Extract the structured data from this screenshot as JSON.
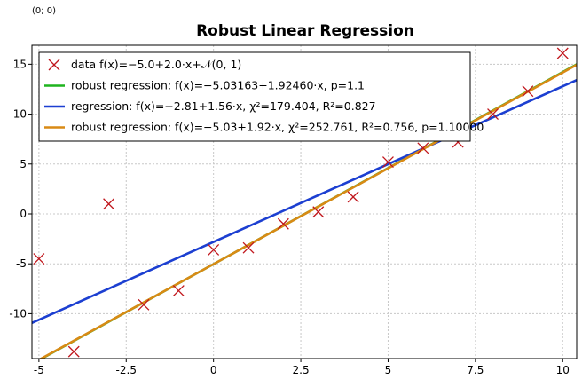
{
  "coord_readout": "(0; 0)",
  "chart_data": {
    "type": "scatter",
    "title": "Robust Linear Regression",
    "xlabel": "",
    "ylabel": "",
    "xlim": [
      -5.2,
      10.4
    ],
    "ylim": [
      -14.5,
      16.9
    ],
    "x_ticks": [
      -5,
      -2.5,
      0,
      2.5,
      5,
      7.5,
      10
    ],
    "x_tick_labels": [
      "-5",
      "-2.5",
      "0",
      "2.5",
      "5",
      "7.5",
      "10"
    ],
    "y_ticks": [
      -10,
      -5,
      0,
      5,
      10,
      15
    ],
    "y_tick_labels": [
      "-10",
      "-5",
      "0",
      "5",
      "10",
      "15"
    ],
    "grid": true,
    "legend_position": "top-left",
    "series": [
      {
        "name": "data f(x)=−5.0+2.0·x+𝒩(0, 1)",
        "kind": "scatter",
        "marker": "x",
        "color": "#c0161c",
        "x": [
          -5,
          -4,
          -3,
          -2,
          -1,
          0,
          1,
          2,
          3,
          4,
          5,
          6,
          7,
          8,
          9,
          10
        ],
        "y": [
          -4.5,
          -13.8,
          1.0,
          -9.1,
          -7.7,
          -3.6,
          -3.4,
          -1.0,
          0.2,
          1.7,
          5.2,
          6.6,
          7.2,
          10.0,
          12.3,
          16.1
        ]
      },
      {
        "name": "robust regression: f(x)=−5.03163+1.92460·x, p=1.1",
        "kind": "line",
        "color": "#1eb41e",
        "intercept": -5.03163,
        "slope": 1.9246
      },
      {
        "name": "regression: f(x)=−2.81+1.56·x, χ²=179.404, R²=0.827",
        "kind": "line",
        "color": "#1c3fd1",
        "intercept": -2.81,
        "slope": 1.56
      },
      {
        "name": "robust regression: f(x)=−5.03+1.92·x, χ²=252.761, R²=0.756, p=1.10000",
        "kind": "line",
        "color": "#d98a15",
        "intercept": -5.03,
        "slope": 1.92
      }
    ]
  }
}
